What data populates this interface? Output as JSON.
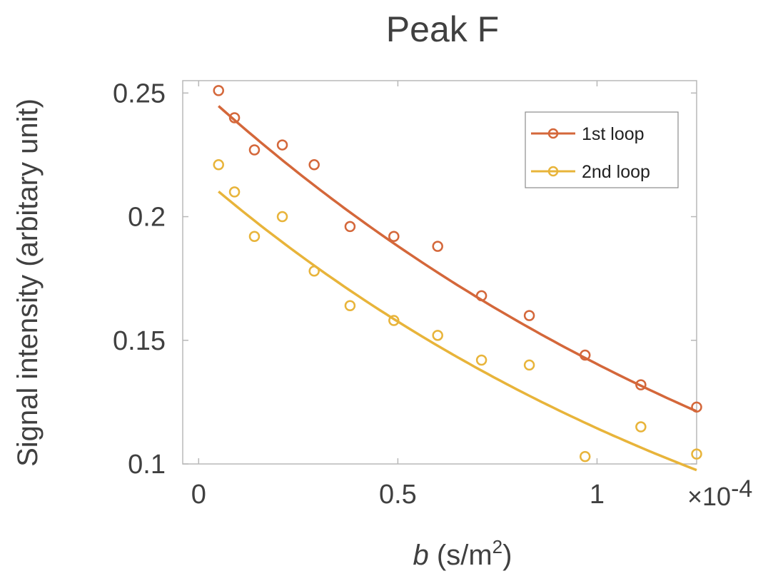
{
  "chart_data": {
    "type": "scatter",
    "title": "Peak F",
    "xlabel": "b (s/m²)",
    "xlabel_var": "b",
    "xlabel_unit_pre": " (s/m",
    "xlabel_unit_sup": "2",
    "xlabel_unit_post": ")",
    "ylabel": "Signal intensity (arbitary unit)",
    "x_multiplier": "×10",
    "x_multiplier_exp": "-4",
    "xlim": [
      -0.04,
      1.25
    ],
    "ylim": [
      0.1,
      0.255
    ],
    "x_ticks": [
      {
        "value": 0,
        "label": "0"
      },
      {
        "value": 0.5,
        "label": "0.5"
      },
      {
        "value": 1,
        "label": "1"
      }
    ],
    "y_ticks": [
      {
        "value": 0.1,
        "label": "0.1"
      },
      {
        "value": 0.15,
        "label": "0.15"
      },
      {
        "value": 0.2,
        "label": "0.2"
      },
      {
        "value": 0.25,
        "label": "0.25"
      }
    ],
    "grid": false,
    "legend_position": "top-right",
    "series": [
      {
        "name": "1st loop",
        "color": "#D4673A",
        "points": [
          {
            "x": 0.05,
            "y": 0.251
          },
          {
            "x": 0.09,
            "y": 0.24
          },
          {
            "x": 0.14,
            "y": 0.227
          },
          {
            "x": 0.21,
            "y": 0.229
          },
          {
            "x": 0.29,
            "y": 0.221
          },
          {
            "x": 0.38,
            "y": 0.196
          },
          {
            "x": 0.49,
            "y": 0.192
          },
          {
            "x": 0.6,
            "y": 0.188
          },
          {
            "x": 0.71,
            "y": 0.168
          },
          {
            "x": 0.83,
            "y": 0.16
          },
          {
            "x": 0.97,
            "y": 0.144
          },
          {
            "x": 1.11,
            "y": 0.132
          },
          {
            "x": 1.25,
            "y": 0.123
          }
        ],
        "fit": {
          "a": 0.252,
          "k": 0.585
        }
      },
      {
        "name": "2nd loop",
        "color": "#E8B43A",
        "points": [
          {
            "x": 0.05,
            "y": 0.221
          },
          {
            "x": 0.09,
            "y": 0.21
          },
          {
            "x": 0.14,
            "y": 0.192
          },
          {
            "x": 0.21,
            "y": 0.2
          },
          {
            "x": 0.29,
            "y": 0.178
          },
          {
            "x": 0.38,
            "y": 0.164
          },
          {
            "x": 0.49,
            "y": 0.158
          },
          {
            "x": 0.6,
            "y": 0.152
          },
          {
            "x": 0.71,
            "y": 0.142
          },
          {
            "x": 0.83,
            "y": 0.14
          },
          {
            "x": 0.97,
            "y": 0.103
          },
          {
            "x": 1.11,
            "y": 0.115
          },
          {
            "x": 1.25,
            "y": 0.104
          }
        ],
        "fit": {
          "a": 0.217,
          "k": 0.64
        }
      }
    ]
  }
}
